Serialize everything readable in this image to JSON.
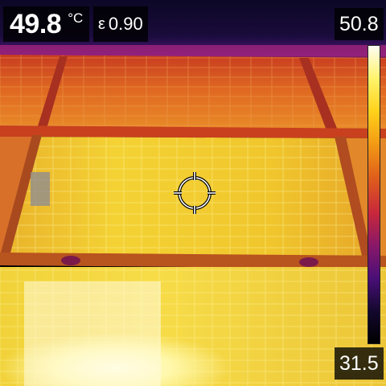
{
  "reading": {
    "temperature": "49.8",
    "unit": "°C",
    "emissivity_symbol": "ε",
    "emissivity": "0.90"
  },
  "scale": {
    "max": "50.8",
    "min": "31.5",
    "palette": [
      "#fdfdf4",
      "#fff36a",
      "#ffd21a",
      "#f39a14",
      "#e0601a",
      "#c8283a",
      "#8a1868",
      "#4a0f78",
      "#14082e",
      "#000000"
    ]
  },
  "colors": {
    "accent_text": "#ffffff",
    "hud_background": "#000000"
  },
  "icons": {
    "crosshair": "center-spot-crosshair-icon"
  }
}
